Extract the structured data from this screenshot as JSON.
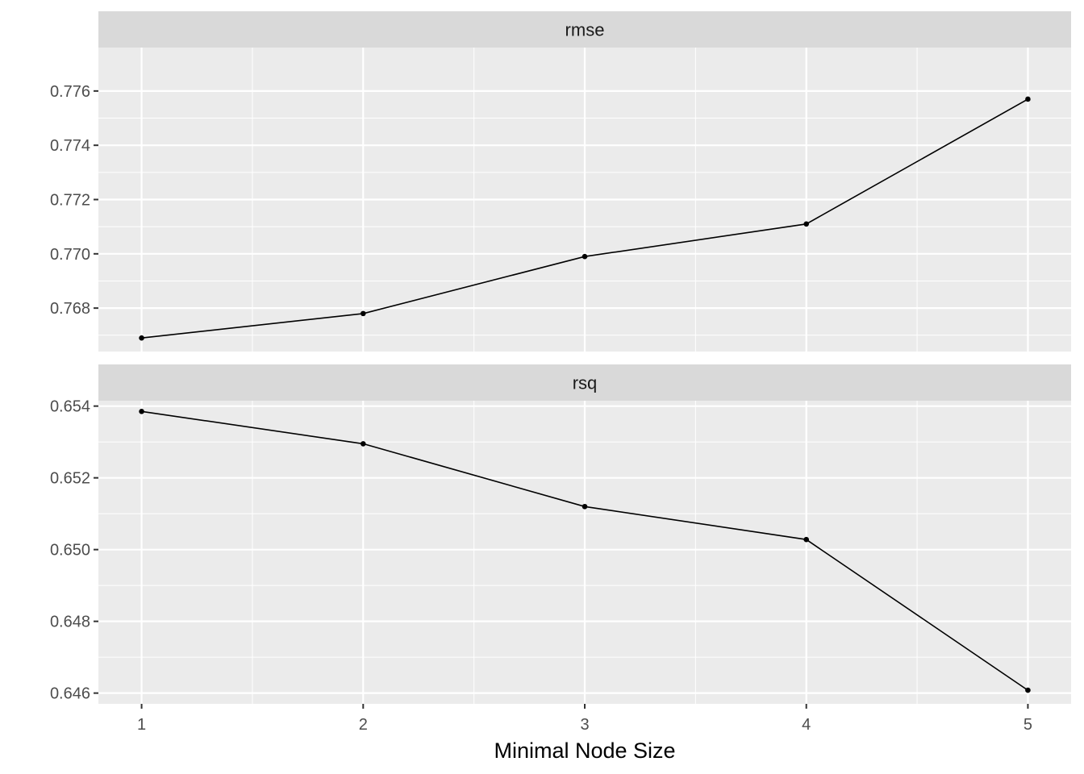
{
  "chart_data": [
    {
      "type": "line",
      "facet": "rmse",
      "x": [
        1,
        2,
        3,
        4,
        5
      ],
      "values": [
        0.7669,
        0.7678,
        0.7699,
        0.7711,
        0.7757
      ],
      "ylim": [
        0.7664,
        0.7776
      ],
      "yticks": [
        0.768,
        0.77,
        0.772,
        0.774,
        0.776
      ],
      "ytick_labels": [
        "0.768",
        "0.770",
        "0.772",
        "0.774",
        "0.776"
      ],
      "grid": true
    },
    {
      "type": "line",
      "facet": "rsq",
      "x": [
        1,
        2,
        3,
        4,
        5
      ],
      "values": [
        0.65385,
        0.65295,
        0.6512,
        0.65028,
        0.64608
      ],
      "ylim": [
        0.6457,
        0.65415
      ],
      "yticks": [
        0.646,
        0.648,
        0.65,
        0.652,
        0.654
      ],
      "ytick_labels": [
        "0.646",
        "0.648",
        "0.650",
        "0.652",
        "0.654"
      ],
      "grid": true
    }
  ],
  "x_axis": {
    "title": "Minimal Node Size",
    "ticks": [
      1,
      2,
      3,
      4,
      5
    ],
    "tick_labels": [
      "1",
      "2",
      "3",
      "4",
      "5"
    ],
    "xlim": [
      0.805,
      5.195
    ]
  },
  "colors": {
    "panel_background": "#ebebeb",
    "strip_background": "#d9d9d9",
    "grid": "#ffffff",
    "line": "#000000",
    "point": "#000000",
    "tick_text": "#4d4d4d",
    "tick_mark": "#333333"
  }
}
